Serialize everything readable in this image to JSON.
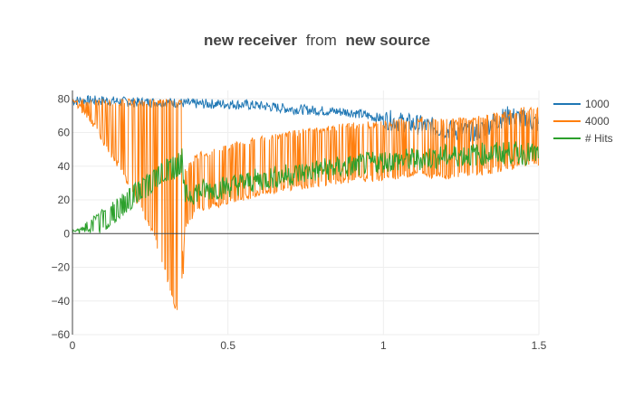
{
  "chart_data": {
    "type": "line",
    "title": {
      "part1": "new receiver",
      "part2": "from",
      "part3": "new source"
    },
    "xlim": [
      0,
      1.5
    ],
    "ylim": [
      -60,
      85
    ],
    "x_ticks": [
      {
        "value": 0,
        "label": "0"
      },
      {
        "value": 0.5,
        "label": "0.5"
      },
      {
        "value": 1,
        "label": "1"
      },
      {
        "value": 1.5,
        "label": "1.5"
      }
    ],
    "y_ticks": [
      {
        "value": 80,
        "label": "80"
      },
      {
        "value": 60,
        "label": "60"
      },
      {
        "value": 40,
        "label": "40"
      },
      {
        "value": 20,
        "label": "20"
      },
      {
        "value": 0,
        "label": "0"
      },
      {
        "value": -20,
        "label": "−20"
      },
      {
        "value": -40,
        "label": "−40"
      },
      {
        "value": -60,
        "label": "−60"
      }
    ],
    "grid": true,
    "legend_position": "top-right",
    "series": [
      {
        "name": "1000",
        "color": "#1f77b4",
        "x": [
          0.0,
          0.1,
          0.2,
          0.3,
          0.4,
          0.5,
          0.6,
          0.7,
          0.8,
          0.9,
          1.0,
          1.1,
          1.2,
          1.3,
          1.35,
          1.4,
          1.45,
          1.5
        ],
        "y": [
          79,
          79,
          78,
          78,
          77,
          77,
          76,
          74,
          73,
          72,
          68,
          65,
          62,
          60,
          66,
          70,
          68,
          65
        ]
      },
      {
        "name": "4000",
        "color": "#ff7f0e",
        "x": [
          0.0,
          0.05,
          0.1,
          0.15,
          0.2,
          0.25,
          0.3,
          0.35,
          0.36,
          0.4,
          0.5,
          0.6,
          0.7,
          0.8,
          0.9,
          1.0,
          1.1,
          1.2,
          1.3,
          1.4,
          1.45,
          1.5
        ],
        "y": [
          77,
          68,
          52,
          38,
          20,
          3,
          -25,
          -58,
          20,
          30,
          35,
          40,
          43,
          46,
          48,
          49,
          52,
          50,
          52,
          55,
          58,
          57
        ]
      },
      {
        "name": "# Hits",
        "color": "#2ca02c",
        "x": [
          0.0,
          0.05,
          0.1,
          0.15,
          0.2,
          0.25,
          0.3,
          0.35,
          0.36,
          0.4,
          0.5,
          0.6,
          0.7,
          0.8,
          0.9,
          1.0,
          1.1,
          1.2,
          1.3,
          1.4,
          1.5
        ],
        "y": [
          2,
          8,
          15,
          22,
          30,
          37,
          44,
          49,
          22,
          25,
          28,
          32,
          35,
          38,
          40,
          43,
          44,
          46,
          47,
          48,
          47
        ]
      }
    ]
  }
}
